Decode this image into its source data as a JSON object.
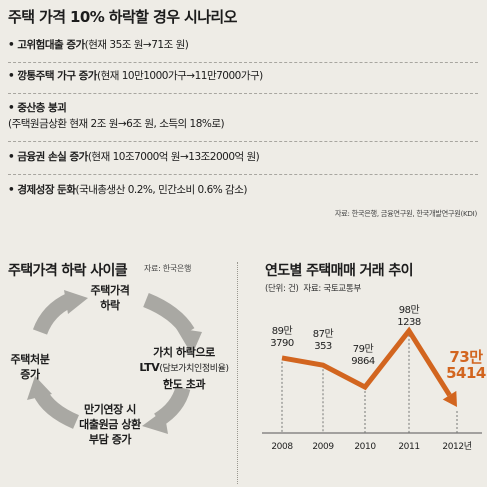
{
  "scenario": {
    "title": "주택 가격 10% 하락할 경우 시나리오",
    "items": [
      {
        "main": "• 고위험대출 증가",
        "sub": "(현재 35조 원→71조 원)",
        "sub2": ""
      },
      {
        "main": "• 깡통주택 가구 증가",
        "sub": "(현재 10만1000가구→11만7000가구)",
        "sub2": ""
      },
      {
        "main": "• 중산층 붕괴",
        "sub": "",
        "sub2": "(주택원금상환 현재 2조 원→6조 원,  소득의 18%로)"
      },
      {
        "main": "• 금융권 손실 증가",
        "sub": "(현재 10조7000억 원→13조2000억 원)",
        "sub2": ""
      },
      {
        "main": "• 경제성장 둔화",
        "sub": "(국내총생산 0.2%,  민간소비 0.6% 감소)",
        "sub2": ""
      }
    ],
    "source": "자료: 한국은행, 금융연구원, 한국개발연구원(KDI)"
  },
  "cycle": {
    "title": "주택가격 하락 사이클",
    "source": "자료: 한국은행",
    "nodes": {
      "top": {
        "line1": "주택가격",
        "line2": "하락"
      },
      "right": {
        "line1": "가치 하락으로",
        "line2": "LTV",
        "line2_sub": "(담보가치인정비율)",
        "line3": "한도 초과"
      },
      "bottom": {
        "line1": "만기연장 시",
        "line2": "대출원금 상환",
        "line3": "부담 증가"
      },
      "left": {
        "line1": "주택처분",
        "line2": "증가"
      }
    },
    "colors": {
      "arrow": "#a9a8a3"
    }
  },
  "chart_data": {
    "type": "line",
    "title": "연도별 주택매매 거래 추이",
    "unit_label": "(단위: 건)",
    "source": "자료: 국토교통부",
    "categories": [
      "2008",
      "2009",
      "2010",
      "2011",
      "2012년"
    ],
    "values": [
      893790,
      870353,
      799864,
      981238,
      735414
    ],
    "data_labels": [
      {
        "line1": "89만",
        "line2": "3790"
      },
      {
        "line1": "87만",
        "line2": "353"
      },
      {
        "line1": "79만",
        "line2": "9864"
      },
      {
        "line1": "98만",
        "line2": "1238"
      },
      {
        "line1": "73만",
        "line2": "5414"
      }
    ],
    "ylim": [
      700000,
      1000000
    ],
    "colors": {
      "line": "#d2651f",
      "highlight": "#d2651f"
    }
  }
}
